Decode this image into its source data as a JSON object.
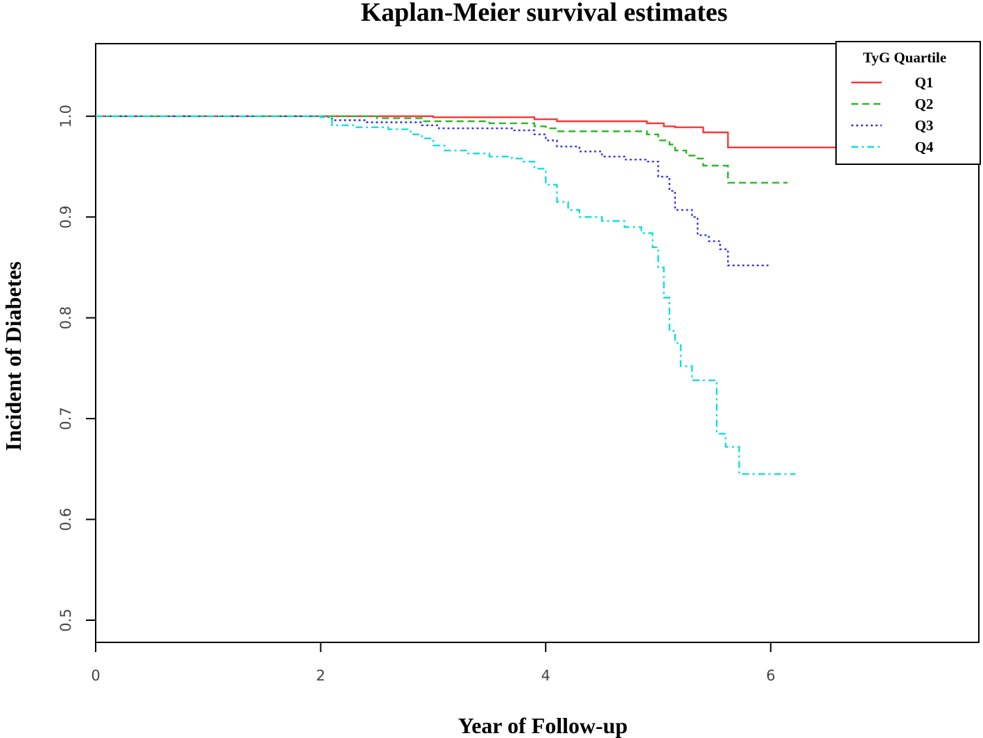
{
  "chart_data": {
    "type": "line",
    "title": "Kaplan-Meier survival estimates",
    "xlabel": "Year of Follow-up",
    "ylabel": "Incident of Diabetes",
    "xlim": [
      0,
      7.85
    ],
    "ylim": [
      0.478,
      1.072
    ],
    "x_ticks": [
      0,
      2,
      4,
      6
    ],
    "y_ticks": [
      0.5,
      0.6,
      0.7,
      0.8,
      0.9,
      1.0
    ],
    "y_tick_labels": [
      "0.5",
      "0.6",
      "0.7",
      "0.8",
      "0.9",
      "1.0"
    ],
    "grid": false,
    "step": true,
    "legend": {
      "title": "TyG Quartile",
      "position": "top-right"
    },
    "series": [
      {
        "name": "Q1",
        "color": "#ff3333",
        "dash": "solid",
        "points": [
          [
            0,
            1.0
          ],
          [
            3.0,
            0.999
          ],
          [
            3.9,
            0.997
          ],
          [
            4.1,
            0.995
          ],
          [
            4.9,
            0.993
          ],
          [
            5.05,
            0.99
          ],
          [
            5.15,
            0.989
          ],
          [
            5.4,
            0.984
          ],
          [
            5.62,
            0.969
          ],
          [
            7.85,
            0.952
          ]
        ]
      },
      {
        "name": "Q2",
        "color": "#22bb22",
        "dash": "dashed",
        "points": [
          [
            0,
            1.0
          ],
          [
            2.5,
            0.998
          ],
          [
            2.9,
            0.995
          ],
          [
            3.5,
            0.993
          ],
          [
            3.9,
            0.99
          ],
          [
            4.0,
            0.988
          ],
          [
            4.1,
            0.985
          ],
          [
            4.9,
            0.982
          ],
          [
            5.0,
            0.976
          ],
          [
            5.1,
            0.972
          ],
          [
            5.15,
            0.966
          ],
          [
            5.25,
            0.961
          ],
          [
            5.35,
            0.958
          ],
          [
            5.4,
            0.951
          ],
          [
            5.62,
            0.934
          ],
          [
            6.15,
            0.934
          ]
        ]
      },
      {
        "name": "Q3",
        "color": "#3333ee",
        "dash": "dotted",
        "points": [
          [
            0,
            1.0
          ],
          [
            2.0,
            0.999
          ],
          [
            2.1,
            0.996
          ],
          [
            2.4,
            0.994
          ],
          [
            2.9,
            0.991
          ],
          [
            3.05,
            0.988
          ],
          [
            3.7,
            0.986
          ],
          [
            3.9,
            0.982
          ],
          [
            4.0,
            0.976
          ],
          [
            4.1,
            0.97
          ],
          [
            4.3,
            0.965
          ],
          [
            4.5,
            0.96
          ],
          [
            4.7,
            0.957
          ],
          [
            4.9,
            0.955
          ],
          [
            5.0,
            0.94
          ],
          [
            5.1,
            0.926
          ],
          [
            5.15,
            0.907
          ],
          [
            5.3,
            0.9
          ],
          [
            5.35,
            0.882
          ],
          [
            5.45,
            0.876
          ],
          [
            5.55,
            0.868
          ],
          [
            5.62,
            0.852
          ],
          [
            5.98,
            0.852
          ]
        ]
      },
      {
        "name": "Q4",
        "color": "#11dddd",
        "dash": "dashdot",
        "points": [
          [
            0,
            1.0
          ],
          [
            2.0,
            0.999
          ],
          [
            2.1,
            0.991
          ],
          [
            2.3,
            0.989
          ],
          [
            2.6,
            0.987
          ],
          [
            2.8,
            0.982
          ],
          [
            2.9,
            0.978
          ],
          [
            3.0,
            0.971
          ],
          [
            3.1,
            0.966
          ],
          [
            3.3,
            0.963
          ],
          [
            3.5,
            0.96
          ],
          [
            3.7,
            0.958
          ],
          [
            3.8,
            0.955
          ],
          [
            3.9,
            0.948
          ],
          [
            4.0,
            0.932
          ],
          [
            4.1,
            0.915
          ],
          [
            4.2,
            0.907
          ],
          [
            4.3,
            0.9
          ],
          [
            4.5,
            0.896
          ],
          [
            4.7,
            0.89
          ],
          [
            4.85,
            0.884
          ],
          [
            4.95,
            0.87
          ],
          [
            5.0,
            0.85
          ],
          [
            5.05,
            0.82
          ],
          [
            5.1,
            0.787
          ],
          [
            5.15,
            0.775
          ],
          [
            5.2,
            0.752
          ],
          [
            5.3,
            0.738
          ],
          [
            5.5,
            0.738
          ],
          [
            5.52,
            0.685
          ],
          [
            5.6,
            0.672
          ],
          [
            5.72,
            0.645
          ],
          [
            6.22,
            0.645
          ]
        ]
      }
    ]
  }
}
